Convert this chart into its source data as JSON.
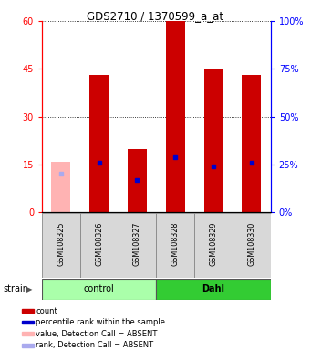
{
  "title": "GDS2710 / 1370599_a_at",
  "samples": [
    "GSM108325",
    "GSM108326",
    "GSM108327",
    "GSM108328",
    "GSM108329",
    "GSM108330"
  ],
  "count_values": [
    16,
    43,
    20,
    60,
    45,
    43
  ],
  "rank_values": [
    20,
    26,
    17,
    29,
    24,
    26
  ],
  "absent_flags": [
    true,
    false,
    false,
    false,
    false,
    false
  ],
  "ylim_left": [
    0,
    60
  ],
  "ylim_right": [
    0,
    100
  ],
  "yticks_left": [
    0,
    15,
    30,
    45,
    60
  ],
  "yticks_right": [
    0,
    25,
    50,
    75,
    100
  ],
  "count_color_present": "#cc0000",
  "count_color_absent": "#ffb3b3",
  "rank_color_present": "#0000cc",
  "rank_color_absent": "#aaaaee",
  "group_colors_light": "#aaffaa",
  "group_colors_dark": "#33cc33",
  "legend_items": [
    {
      "color": "#cc0000",
      "label": "count"
    },
    {
      "color": "#0000cc",
      "label": "percentile rank within the sample"
    },
    {
      "color": "#ffb3b3",
      "label": "value, Detection Call = ABSENT"
    },
    {
      "color": "#aaaaee",
      "label": "rank, Detection Call = ABSENT"
    }
  ],
  "bg_color": "#ffffff",
  "bar_width": 0.5
}
